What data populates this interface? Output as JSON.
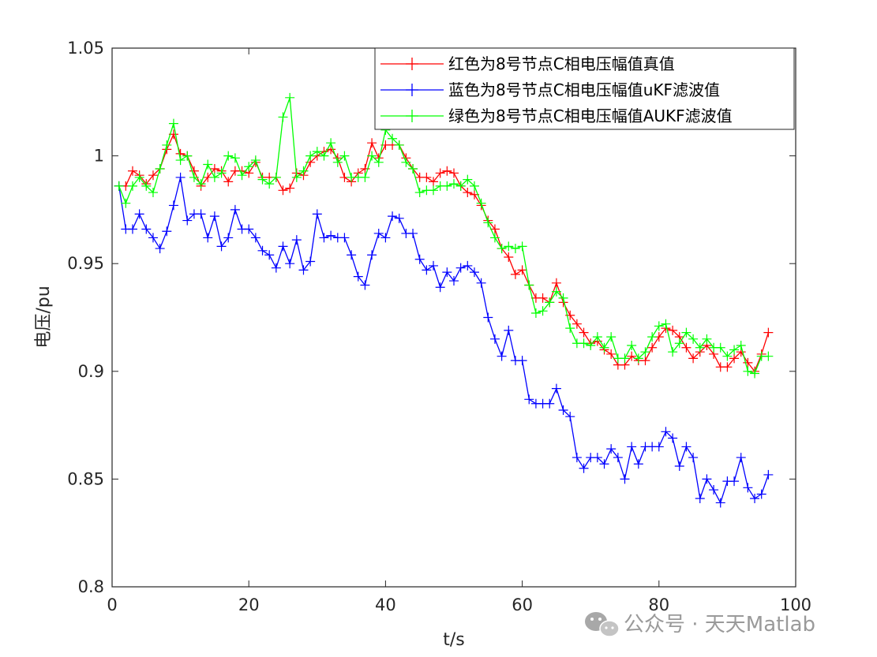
{
  "chart_data": {
    "type": "line",
    "title": "",
    "xlabel": "t/s",
    "ylabel": "电压/pu",
    "xlim": [
      0,
      100
    ],
    "ylim": [
      0.8,
      1.05
    ],
    "xticks": [
      "0",
      "20",
      "40",
      "60",
      "80",
      "100"
    ],
    "yticks": [
      "0.8",
      "0.85",
      "0.9",
      "0.95",
      "1",
      "1.05"
    ],
    "grid": false,
    "legend_position": "top-right",
    "x": [
      1,
      2,
      3,
      4,
      5,
      6,
      7,
      8,
      9,
      10,
      11,
      12,
      13,
      14,
      15,
      16,
      17,
      18,
      19,
      20,
      21,
      22,
      23,
      24,
      25,
      26,
      27,
      28,
      29,
      30,
      31,
      32,
      33,
      34,
      35,
      36,
      37,
      38,
      39,
      40,
      41,
      42,
      43,
      44,
      45,
      46,
      47,
      48,
      49,
      50,
      51,
      52,
      53,
      54,
      55,
      56,
      57,
      58,
      59,
      60,
      61,
      62,
      63,
      64,
      65,
      66,
      67,
      68,
      69,
      70,
      71,
      72,
      73,
      74,
      75,
      76,
      77,
      78,
      79,
      80,
      81,
      82,
      83,
      84,
      85,
      86,
      87,
      88,
      89,
      90,
      91,
      92,
      93,
      94,
      95,
      96
    ],
    "series": [
      {
        "name": "红色为8号节点C相电压幅值真值",
        "color": "#ff0000",
        "marker": "+",
        "values": [
          0.986,
          0.986,
          0.993,
          0.991,
          0.987,
          0.991,
          0.994,
          1.003,
          1.01,
          1.001,
          1.0,
          0.993,
          0.986,
          0.99,
          0.994,
          0.993,
          0.988,
          0.993,
          0.993,
          0.992,
          0.997,
          0.99,
          0.99,
          0.99,
          0.984,
          0.985,
          0.992,
          0.991,
          0.997,
          1.0,
          1.002,
          1.003,
          0.999,
          0.99,
          0.988,
          0.992,
          0.994,
          1.006,
          0.999,
          1.005,
          1.005,
          1.005,
          0.999,
          0.994,
          0.99,
          0.99,
          0.988,
          0.992,
          0.993,
          0.992,
          0.986,
          0.983,
          0.982,
          0.977,
          0.97,
          0.966,
          0.957,
          0.953,
          0.945,
          0.947,
          0.94,
          0.934,
          0.934,
          0.932,
          0.941,
          0.932,
          0.926,
          0.922,
          0.918,
          0.913,
          0.914,
          0.91,
          0.908,
          0.903,
          0.903,
          0.907,
          0.905,
          0.905,
          0.911,
          0.916,
          0.92,
          0.919,
          0.916,
          0.911,
          0.906,
          0.909,
          0.912,
          0.908,
          0.902,
          0.902,
          0.906,
          0.909,
          0.904,
          0.9,
          0.908,
          0.918
        ]
      },
      {
        "name": "蓝色为8号节点C相电压幅值uKF滤波值",
        "color": "#0000ff",
        "marker": "+",
        "values": [
          0.986,
          0.966,
          0.966,
          0.973,
          0.966,
          0.962,
          0.957,
          0.965,
          0.977,
          0.99,
          0.97,
          0.973,
          0.973,
          0.962,
          0.972,
          0.958,
          0.962,
          0.975,
          0.966,
          0.966,
          0.962,
          0.956,
          0.954,
          0.948,
          0.958,
          0.95,
          0.961,
          0.947,
          0.951,
          0.973,
          0.962,
          0.963,
          0.962,
          0.962,
          0.954,
          0.944,
          0.94,
          0.954,
          0.964,
          0.962,
          0.972,
          0.971,
          0.964,
          0.964,
          0.952,
          0.947,
          0.949,
          0.939,
          0.946,
          0.942,
          0.948,
          0.949,
          0.946,
          0.941,
          0.925,
          0.915,
          0.907,
          0.919,
          0.905,
          0.905,
          0.887,
          0.885,
          0.885,
          0.885,
          0.892,
          0.882,
          0.879,
          0.86,
          0.855,
          0.86,
          0.86,
          0.857,
          0.864,
          0.86,
          0.85,
          0.865,
          0.857,
          0.865,
          0.865,
          0.865,
          0.872,
          0.869,
          0.856,
          0.865,
          0.86,
          0.841,
          0.85,
          0.845,
          0.839,
          0.849,
          0.849,
          0.86,
          0.846,
          0.841,
          0.843,
          0.852
        ]
      },
      {
        "name": "绿色为8号节点C相电压幅值AUKF滤波值",
        "color": "#00ff00",
        "marker": "+",
        "values": [
          0.986,
          0.978,
          0.986,
          0.99,
          0.986,
          0.983,
          0.994,
          1.005,
          1.015,
          0.998,
          1.0,
          0.99,
          0.987,
          0.996,
          0.99,
          0.992,
          1.0,
          0.999,
          0.991,
          0.995,
          0.998,
          0.989,
          0.987,
          0.99,
          1.018,
          1.027,
          0.99,
          0.993,
          1.0,
          1.002,
          1.0,
          1.006,
          0.997,
          1.0,
          0.99,
          0.99,
          0.99,
          1.0,
          0.997,
          1.012,
          1.008,
          1.005,
          0.997,
          0.994,
          0.983,
          0.984,
          0.984,
          0.986,
          0.986,
          0.987,
          0.986,
          0.989,
          0.986,
          0.978,
          0.969,
          0.962,
          0.957,
          0.958,
          0.957,
          0.958,
          0.94,
          0.927,
          0.928,
          0.932,
          0.937,
          0.934,
          0.92,
          0.913,
          0.913,
          0.912,
          0.916,
          0.911,
          0.916,
          0.906,
          0.906,
          0.912,
          0.906,
          0.909,
          0.916,
          0.921,
          0.922,
          0.909,
          0.913,
          0.918,
          0.915,
          0.911,
          0.915,
          0.911,
          0.911,
          0.907,
          0.91,
          0.912,
          0.9,
          0.899,
          0.907,
          0.907
        ]
      }
    ]
  },
  "watermark": {
    "icon": "wechat-icon",
    "text": "公众号 · 天天Matlab"
  }
}
